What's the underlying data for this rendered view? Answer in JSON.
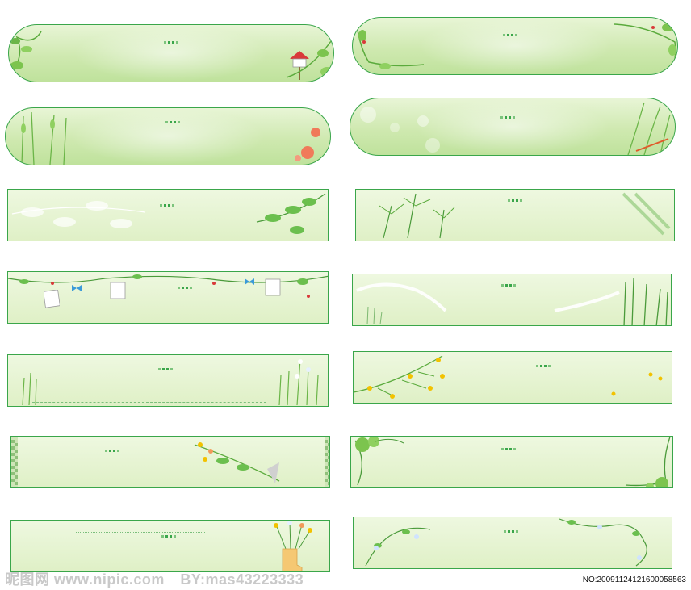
{
  "watermark": {
    "left_text": "昵图网 www.nipic.com",
    "by_text": "BY:mas43223333",
    "id_text": "NO:20091124121600058563"
  },
  "colors": {
    "border": "#3aa64a",
    "fill_light": "#e8f5d6",
    "fill_dark": "#bfe29c",
    "leaf": "#6bbf4e",
    "flower_red": "#f07a5a",
    "flower_yellow": "#f2c200"
  },
  "icons": [
    "leaf-vine-icon",
    "birdhouse-icon",
    "flower-icon",
    "grass-icon",
    "boot-vase-icon",
    "photo-frame-icon",
    "ribbon-icon"
  ]
}
